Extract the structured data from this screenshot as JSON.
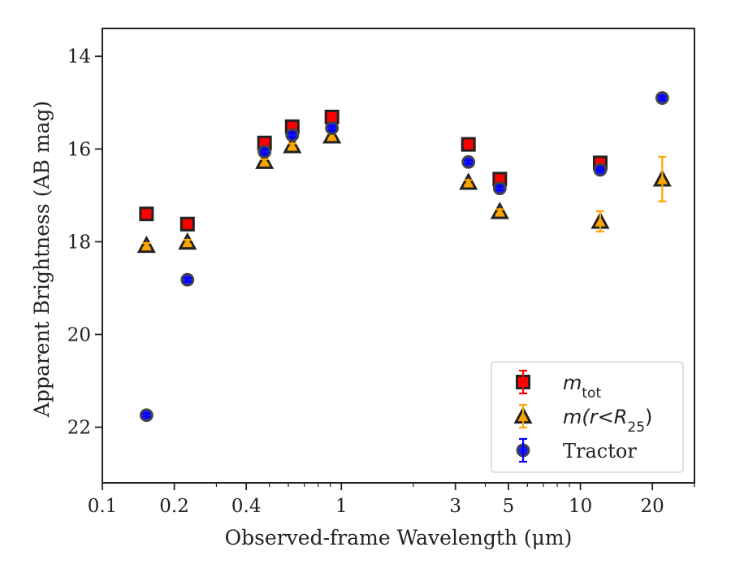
{
  "chart_data": {
    "type": "scatter",
    "xlabel": "Observed-frame Wavelength (μm)",
    "ylabel": "Apparent Brightness (AB mag)",
    "xscale": "log",
    "xlim": [
      0.1,
      30
    ],
    "ylim": [
      23.2,
      13.4
    ],
    "y_inverted": true,
    "x_ticks": [
      0.1,
      0.2,
      0.4,
      1,
      3,
      5,
      10,
      20
    ],
    "x_tick_labels": [
      "0.1",
      "0.2",
      "0.4",
      "1",
      "3",
      "5",
      "10",
      "20"
    ],
    "y_ticks": [
      14,
      16,
      18,
      20,
      22
    ],
    "y_tick_labels": [
      "14",
      "16",
      "18",
      "20",
      "22"
    ],
    "grid": false,
    "legend_position": "lower-right",
    "series": [
      {
        "name": "m_tot",
        "label_main": "m",
        "label_sub": "tot",
        "marker": "square",
        "color": "#ff0000",
        "edge": "#222222",
        "errcolor": "#ff0000",
        "points": [
          {
            "x": 0.153,
            "y": 17.4,
            "err": 0.05
          },
          {
            "x": 0.227,
            "y": 17.62,
            "err": 0.05
          },
          {
            "x": 0.477,
            "y": 15.87,
            "err": 0.05
          },
          {
            "x": 0.623,
            "y": 15.52,
            "err": 0.05
          },
          {
            "x": 0.913,
            "y": 15.31,
            "err": 0.05
          },
          {
            "x": 3.4,
            "y": 15.9,
            "err": 0.05
          },
          {
            "x": 4.6,
            "y": 16.65,
            "err": 0.05
          },
          {
            "x": 12.1,
            "y": 16.3,
            "err": 0.05
          }
        ]
      },
      {
        "name": "m(r<R_25)",
        "label_main": "m(r<R",
        "label_sub": "25",
        "label_tail": ")",
        "marker": "triangle",
        "color": "#ffa500",
        "edge": "#222222",
        "errcolor": "#ffa500",
        "points": [
          {
            "x": 0.153,
            "y": 18.08,
            "err": 0.05
          },
          {
            "x": 0.227,
            "y": 18.01,
            "err": 0.05
          },
          {
            "x": 0.477,
            "y": 16.27,
            "err": 0.05
          },
          {
            "x": 0.623,
            "y": 15.93,
            "err": 0.05
          },
          {
            "x": 0.913,
            "y": 15.72,
            "err": 0.05
          },
          {
            "x": 3.4,
            "y": 16.72,
            "err": 0.05
          },
          {
            "x": 4.6,
            "y": 17.35,
            "err": 0.05
          },
          {
            "x": 12.1,
            "y": 17.56,
            "err": 0.22
          },
          {
            "x": 22.0,
            "y": 16.65,
            "err": 0.48
          }
        ]
      },
      {
        "name": "Tractor",
        "label_main": "Tractor",
        "marker": "circle",
        "color": "#0000ff",
        "edge": "#444444",
        "errcolor": "#0000ff",
        "points": [
          {
            "x": 0.153,
            "y": 21.74,
            "err": 0.04
          },
          {
            "x": 0.227,
            "y": 18.82,
            "err": 0.04
          },
          {
            "x": 0.477,
            "y": 16.06,
            "err": 0.04
          },
          {
            "x": 0.623,
            "y": 15.7,
            "err": 0.04
          },
          {
            "x": 0.913,
            "y": 15.55,
            "err": 0.04
          },
          {
            "x": 3.4,
            "y": 16.28,
            "err": 0.04
          },
          {
            "x": 4.6,
            "y": 16.85,
            "err": 0.04
          },
          {
            "x": 12.1,
            "y": 16.45,
            "err": 0.04
          },
          {
            "x": 22.0,
            "y": 14.9,
            "err": 0.04
          }
        ]
      }
    ]
  }
}
